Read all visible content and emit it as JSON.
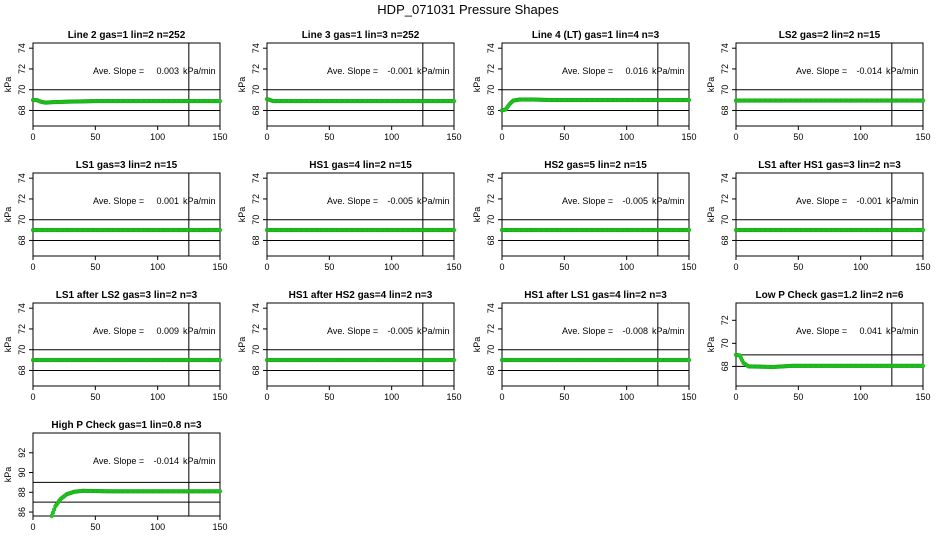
{
  "page": {
    "title": "HDP_071031  Pressure Shapes"
  },
  "colors": {
    "series": "#22cc22",
    "series_stroke": "#119911",
    "axis": "#000000"
  },
  "chart_data": [
    {
      "type": "scatter",
      "title": "Line 2 gas=1 lin=2 n=252",
      "ylabel": "kPa",
      "xlim": [
        0,
        150
      ],
      "ylim": [
        66.5,
        74.5
      ],
      "xticks": [
        0,
        50,
        100,
        150
      ],
      "yticks": [
        68,
        70,
        72,
        74
      ],
      "hlines": [
        68,
        70
      ],
      "vline": 125,
      "annotation": {
        "label": "Ave. Slope =",
        "value": "0.003",
        "unit": "kPa/min"
      },
      "series": {
        "base": 68.9,
        "segments": [
          [
            0,
            69.0
          ],
          [
            3,
            69.0
          ],
          [
            6,
            68.85
          ],
          [
            10,
            68.75
          ],
          [
            16,
            68.8
          ],
          [
            30,
            68.85
          ],
          [
            50,
            68.9
          ]
        ]
      }
    },
    {
      "type": "scatter",
      "title": "Line 3 gas=1 lin=3 n=252",
      "ylabel": "kPa",
      "xlim": [
        0,
        150
      ],
      "ylim": [
        66.5,
        74.5
      ],
      "xticks": [
        0,
        50,
        100,
        150
      ],
      "yticks": [
        68,
        70,
        72,
        74
      ],
      "hlines": [
        68,
        70
      ],
      "vline": 125,
      "annotation": {
        "label": "Ave. Slope =",
        "value": "-0.001",
        "unit": "kPa/min"
      },
      "series": {
        "base": 68.9,
        "segments": [
          [
            0,
            69.1
          ],
          [
            5,
            68.9
          ]
        ]
      }
    },
    {
      "type": "scatter",
      "title": "Line 4 (LT) gas=1 lin=4 n=3",
      "ylabel": "kPa",
      "xlim": [
        0,
        150
      ],
      "ylim": [
        66.5,
        74.5
      ],
      "xticks": [
        0,
        50,
        100,
        150
      ],
      "yticks": [
        68,
        70,
        72,
        74
      ],
      "hlines": [
        68,
        70
      ],
      "vline": 125,
      "annotation": {
        "label": "Ave. Slope =",
        "value": "0.016",
        "unit": "kPa/min"
      },
      "series": {
        "base": 69.0,
        "segments": [
          [
            0,
            68.0
          ],
          [
            3,
            68.1
          ],
          [
            6,
            68.6
          ],
          [
            9,
            68.95
          ],
          [
            14,
            69.05
          ],
          [
            25,
            69.05
          ],
          [
            40,
            69.0
          ]
        ]
      }
    },
    {
      "type": "scatter",
      "title": "LS2 gas=2 lin=2 n=15",
      "ylabel": "kPa",
      "xlim": [
        0,
        150
      ],
      "ylim": [
        66.5,
        74.5
      ],
      "xticks": [
        0,
        50,
        100,
        150
      ],
      "yticks": [
        68,
        70,
        72,
        74
      ],
      "hlines": [
        68,
        70
      ],
      "vline": 125,
      "annotation": {
        "label": "Ave. Slope =",
        "value": "-0.014",
        "unit": "kPa/min"
      },
      "series": {
        "base": 68.95,
        "segments": [
          [
            0,
            68.95
          ]
        ]
      }
    },
    {
      "type": "scatter",
      "title": "LS1 gas=3 lin=2 n=15",
      "ylabel": "kPa",
      "xlim": [
        0,
        150
      ],
      "ylim": [
        66.5,
        74.5
      ],
      "xticks": [
        0,
        50,
        100,
        150
      ],
      "yticks": [
        68,
        70,
        72,
        74
      ],
      "hlines": [
        68,
        70
      ],
      "vline": 125,
      "annotation": {
        "label": "Ave. Slope =",
        "value": "0.001",
        "unit": "kPa/min"
      },
      "series": {
        "base": 69.0,
        "segments": [
          [
            0,
            69.0
          ]
        ]
      }
    },
    {
      "type": "scatter",
      "title": "HS1 gas=4 lin=2 n=15",
      "ylabel": "kPa",
      "xlim": [
        0,
        150
      ],
      "ylim": [
        66.5,
        74.5
      ],
      "xticks": [
        0,
        50,
        100,
        150
      ],
      "yticks": [
        68,
        70,
        72,
        74
      ],
      "hlines": [
        68,
        70
      ],
      "vline": 125,
      "annotation": {
        "label": "Ave. Slope =",
        "value": "-0.005",
        "unit": "kPa/min"
      },
      "series": {
        "base": 69.0,
        "segments": [
          [
            0,
            69.0
          ]
        ]
      }
    },
    {
      "type": "scatter",
      "title": "HS2 gas=5 lin=2 n=15",
      "ylabel": "kPa",
      "xlim": [
        0,
        150
      ],
      "ylim": [
        66.5,
        74.5
      ],
      "xticks": [
        0,
        50,
        100,
        150
      ],
      "yticks": [
        68,
        70,
        72,
        74
      ],
      "hlines": [
        68,
        70
      ],
      "vline": 125,
      "annotation": {
        "label": "Ave. Slope =",
        "value": "-0.005",
        "unit": "kPa/min"
      },
      "series": {
        "base": 69.0,
        "segments": [
          [
            0,
            69.0
          ]
        ]
      }
    },
    {
      "type": "scatter",
      "title": "LS1 after HS1 gas=3 lin=2 n=3",
      "ylabel": "kPa",
      "xlim": [
        0,
        150
      ],
      "ylim": [
        66.5,
        74.5
      ],
      "xticks": [
        0,
        50,
        100,
        150
      ],
      "yticks": [
        68,
        70,
        72,
        74
      ],
      "hlines": [
        68,
        70
      ],
      "vline": 125,
      "annotation": {
        "label": "Ave. Slope =",
        "value": "-0.001",
        "unit": "kPa/min"
      },
      "series": {
        "base": 69.0,
        "segments": [
          [
            0,
            69.0
          ]
        ]
      }
    },
    {
      "type": "scatter",
      "title": "LS1 after LS2 gas=3 lin=2 n=3",
      "ylabel": "kPa",
      "xlim": [
        0,
        150
      ],
      "ylim": [
        66.5,
        74.5
      ],
      "xticks": [
        0,
        50,
        100,
        150
      ],
      "yticks": [
        68,
        70,
        72,
        74
      ],
      "hlines": [
        68,
        70
      ],
      "vline": 125,
      "annotation": {
        "label": "Ave. Slope =",
        "value": "0.009",
        "unit": "kPa/min"
      },
      "series": {
        "base": 69.0,
        "segments": [
          [
            0,
            69.0
          ]
        ]
      }
    },
    {
      "type": "scatter",
      "title": "HS1 after HS2 gas=4 lin=2 n=3",
      "ylabel": "kPa",
      "xlim": [
        0,
        150
      ],
      "ylim": [
        66.5,
        74.5
      ],
      "xticks": [
        0,
        50,
        100,
        150
      ],
      "yticks": [
        68,
        70,
        72,
        74
      ],
      "hlines": [
        68,
        70
      ],
      "vline": 125,
      "annotation": {
        "label": "Ave. Slope =",
        "value": "-0.005",
        "unit": "kPa/min"
      },
      "series": {
        "base": 69.0,
        "segments": [
          [
            0,
            69.0
          ]
        ]
      }
    },
    {
      "type": "scatter",
      "title": "HS1 after LS1 gas=4 lin=2 n=3",
      "ylabel": "kPa",
      "xlim": [
        0,
        150
      ],
      "ylim": [
        66.5,
        74.5
      ],
      "xticks": [
        0,
        50,
        100,
        150
      ],
      "yticks": [
        68,
        70,
        72,
        74
      ],
      "hlines": [
        68,
        70
      ],
      "vline": 125,
      "annotation": {
        "label": "Ave. Slope =",
        "value": "-0.008",
        "unit": "kPa/min"
      },
      "series": {
        "base": 69.0,
        "segments": [
          [
            0,
            69.0
          ]
        ]
      }
    },
    {
      "type": "scatter",
      "title": "Low P Check gas=1.2 lin=2 n=6",
      "ylabel": "kPa",
      "xlim": [
        0,
        150
      ],
      "ylim": [
        66.3,
        73.5
      ],
      "xticks": [
        0,
        50,
        100,
        150
      ],
      "yticks": [
        68,
        70,
        72
      ],
      "hlines": [
        68,
        69
      ],
      "vline": 125,
      "annotation": {
        "label": "Ave. Slope =",
        "value": "0.041",
        "unit": "kPa/min"
      },
      "series": {
        "base": 68.05,
        "segments": [
          [
            0,
            69.0
          ],
          [
            3,
            68.95
          ],
          [
            6,
            68.3
          ],
          [
            10,
            68.0
          ],
          [
            30,
            67.95
          ],
          [
            45,
            68.05
          ]
        ]
      }
    },
    {
      "type": "scatter",
      "title": "High P Check gas=1 lin=0.8 n=3",
      "ylabel": "kPa",
      "xlim": [
        0,
        150
      ],
      "ylim": [
        85.6,
        94
      ],
      "xticks": [
        0,
        50,
        100,
        150
      ],
      "yticks": [
        86,
        88,
        90,
        92
      ],
      "hlines": [
        87,
        89
      ],
      "vline": 125,
      "annotation": {
        "label": "Ave. Slope =",
        "value": "-0.014",
        "unit": "kPa/min"
      },
      "series": {
        "base": 88.1,
        "segments": [
          [
            15,
            85.6
          ],
          [
            18,
            86.6
          ],
          [
            22,
            87.3
          ],
          [
            27,
            87.8
          ],
          [
            33,
            88.05
          ],
          [
            40,
            88.15
          ],
          [
            60,
            88.1
          ]
        ]
      }
    }
  ]
}
